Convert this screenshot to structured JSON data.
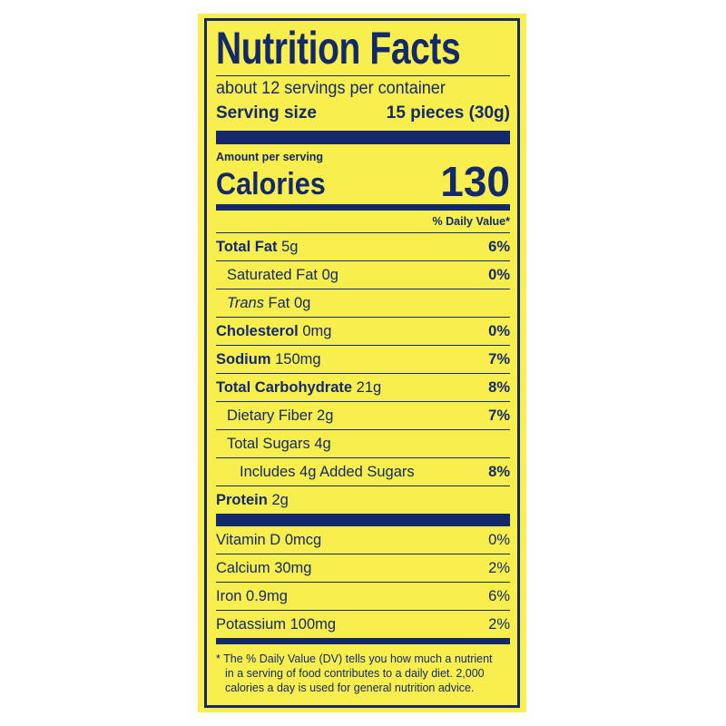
{
  "colors": {
    "background": "#f8ef4f",
    "ink": "#13296b"
  },
  "title": "Nutrition Facts",
  "servings_per_container": "about 12 servings per container",
  "serving_size": {
    "label": "Serving size",
    "value": "15 pieces (30g)"
  },
  "amount_per_serving": "Amount per serving",
  "calories": {
    "label": "Calories",
    "value": "130"
  },
  "daily_value_header": "% Daily Value*",
  "nutrients": [
    {
      "name": "Total Fat",
      "amount": "5g",
      "dv": "6%"
    },
    {
      "name": "Saturated Fat",
      "amount": "0g",
      "dv": "0%"
    },
    {
      "name": "Trans",
      "name_suffix": " Fat",
      "amount": "0g",
      "dv": ""
    },
    {
      "name": "Cholesterol",
      "amount": "0mg",
      "dv": "0%"
    },
    {
      "name": "Sodium",
      "amount": "150mg",
      "dv": "7%"
    },
    {
      "name": "Total Carbohydrate",
      "amount": "21g",
      "dv": "8%"
    },
    {
      "name": "Dietary Fiber",
      "amount": "2g",
      "dv": "7%"
    },
    {
      "name": "Total Sugars",
      "amount": "4g",
      "dv": ""
    },
    {
      "name": "Includes 4g Added Sugars",
      "amount": "",
      "dv": "8%"
    },
    {
      "name": "Protein",
      "amount": "2g",
      "dv": ""
    }
  ],
  "vitamins": [
    {
      "name": "Vitamin D",
      "amount": "0mcg",
      "dv": "0%"
    },
    {
      "name": "Calcium",
      "amount": "30mg",
      "dv": "2%"
    },
    {
      "name": "Iron",
      "amount": "0.9mg",
      "dv": "6%"
    },
    {
      "name": "Potassium",
      "amount": "100mg",
      "dv": "2%"
    }
  ],
  "footnote": [
    "* The % Daily Value (DV) tells you how much a nutrient",
    "in a serving of food contributes to a daily diet. 2,000",
    "calories a day is used for general nutrition advice."
  ]
}
